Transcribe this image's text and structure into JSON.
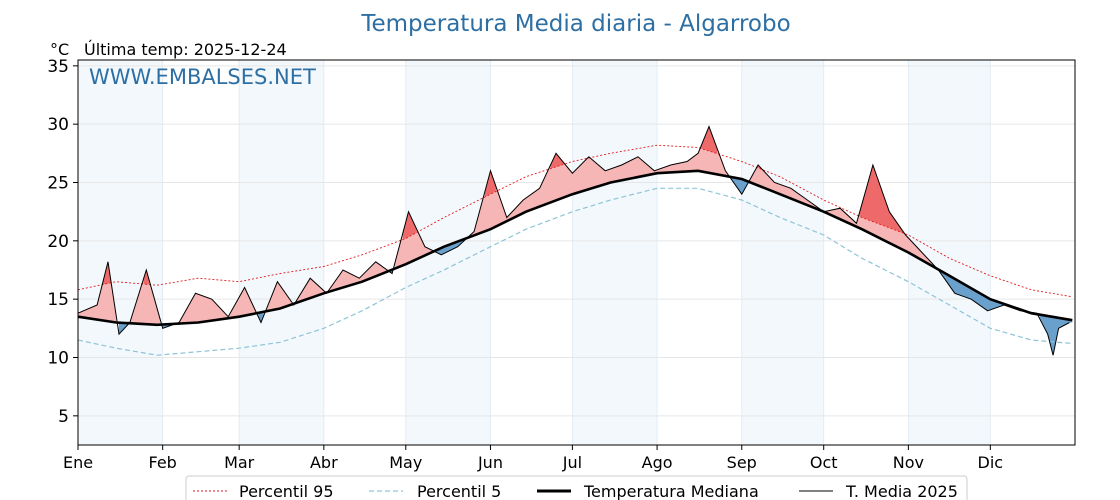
{
  "header": {
    "title": "Temperatura Media diaria - Algarrobo",
    "unit": "°C",
    "last_temp_label": "Última temp: 2025-12-24",
    "watermark": "WWW.EMBALSES.NET"
  },
  "chart_data": {
    "type": "line",
    "x_unit": "day_of_year",
    "ylim": [
      2.5,
      35.5
    ],
    "yticks": [
      5,
      10,
      15,
      20,
      25,
      30,
      35
    ],
    "grid": true,
    "legend_position": "bottom-center",
    "months": [
      {
        "label": "Ene",
        "start_day": 1
      },
      {
        "label": "Feb",
        "start_day": 32
      },
      {
        "label": "Mar",
        "start_day": 60
      },
      {
        "label": "Abr",
        "start_day": 91
      },
      {
        "label": "May",
        "start_day": 121
      },
      {
        "label": "Jun",
        "start_day": 152
      },
      {
        "label": "Jul",
        "start_day": 182
      },
      {
        "label": "Ago",
        "start_day": 213
      },
      {
        "label": "Sep",
        "start_day": 244
      },
      {
        "label": "Oct",
        "start_day": 274
      },
      {
        "label": "Nov",
        "start_day": 305
      },
      {
        "label": "Dic",
        "start_day": 335
      }
    ],
    "shade_months": [
      "Ene",
      "Mar",
      "May",
      "Jul",
      "Sep",
      "Nov"
    ],
    "series": [
      {
        "name": "Percentil 95",
        "color": "#e31a1c",
        "style": "dotted",
        "x": [
          1,
          15,
          30,
          45,
          60,
          75,
          91,
          105,
          121,
          135,
          152,
          165,
          182,
          196,
          213,
          228,
          244,
          258,
          274,
          288,
          305,
          320,
          335,
          350,
          365
        ],
        "y": [
          15.8,
          16.5,
          16.2,
          16.8,
          16.5,
          17.2,
          17.8,
          18.8,
          20.2,
          22.0,
          24.0,
          25.5,
          26.8,
          27.5,
          28.2,
          28.0,
          26.8,
          25.5,
          23.5,
          22.0,
          20.5,
          18.5,
          17.0,
          15.8,
          15.2
        ]
      },
      {
        "name": "Percentil 5",
        "color": "#8ec4d6",
        "style": "dashed",
        "x": [
          1,
          15,
          30,
          45,
          60,
          75,
          91,
          105,
          121,
          135,
          152,
          165,
          182,
          196,
          213,
          228,
          244,
          258,
          274,
          288,
          305,
          320,
          335,
          350,
          365
        ],
        "y": [
          11.5,
          10.8,
          10.2,
          10.5,
          10.8,
          11.3,
          12.5,
          14.0,
          16.0,
          17.5,
          19.5,
          21.0,
          22.5,
          23.5,
          24.5,
          24.5,
          23.5,
          22.0,
          20.5,
          18.5,
          16.5,
          14.5,
          12.5,
          11.5,
          11.2
        ]
      },
      {
        "name": "Temperatura Mediana",
        "color": "#000000",
        "style": "solid-bold",
        "x": [
          1,
          15,
          30,
          45,
          60,
          75,
          91,
          105,
          121,
          135,
          152,
          165,
          182,
          196,
          213,
          228,
          244,
          258,
          274,
          288,
          305,
          320,
          335,
          350,
          365
        ],
        "y": [
          13.5,
          13.0,
          12.8,
          13.0,
          13.5,
          14.2,
          15.5,
          16.5,
          18.0,
          19.5,
          21.0,
          22.5,
          24.0,
          25.0,
          25.8,
          26.0,
          25.3,
          24.0,
          22.5,
          21.0,
          19.0,
          17.0,
          15.0,
          13.8,
          13.2
        ]
      },
      {
        "name": "T. Media 2025",
        "color": "#000000",
        "style": "solid-thin",
        "x": [
          1,
          8,
          12,
          16,
          20,
          26,
          32,
          38,
          44,
          50,
          56,
          62,
          68,
          74,
          80,
          86,
          92,
          98,
          104,
          110,
          116,
          122,
          128,
          134,
          140,
          146,
          152,
          158,
          164,
          170,
          176,
          182,
          188,
          194,
          200,
          206,
          212,
          218,
          224,
          228,
          232,
          238,
          244,
          250,
          256,
          262,
          268,
          274,
          280,
          286,
          292,
          298,
          304,
          310,
          316,
          322,
          328,
          334,
          340,
          346,
          352,
          356,
          358,
          360,
          364
        ],
        "y": [
          13.8,
          14.5,
          18.2,
          12.0,
          13.0,
          17.5,
          12.5,
          13.0,
          15.5,
          15.0,
          13.5,
          16.0,
          13.0,
          16.5,
          14.5,
          16.8,
          15.5,
          17.5,
          16.8,
          18.2,
          17.2,
          22.5,
          19.5,
          18.8,
          19.5,
          20.8,
          26.0,
          22.0,
          23.5,
          24.5,
          27.5,
          25.8,
          27.2,
          26.0,
          26.5,
          27.2,
          26.0,
          26.5,
          26.8,
          27.5,
          29.8,
          26.0,
          24.0,
          26.5,
          25.0,
          24.5,
          23.5,
          22.5,
          22.8,
          21.5,
          26.5,
          22.5,
          20.5,
          19.0,
          17.5,
          15.5,
          15.0,
          14.0,
          14.5,
          14.0,
          13.8,
          12.0,
          10.2,
          12.5,
          13.0
        ]
      }
    ],
    "fill_colors": {
      "above_median": "#f7b6b6",
      "above_p95": "#ee6a6a",
      "below_median": "#6aa0cc"
    }
  },
  "legend": {
    "items": [
      {
        "label": "Percentil 95"
      },
      {
        "label": "Percentil 5"
      },
      {
        "label": "Temperatura Mediana"
      },
      {
        "label": "T. Media 2025"
      }
    ]
  }
}
